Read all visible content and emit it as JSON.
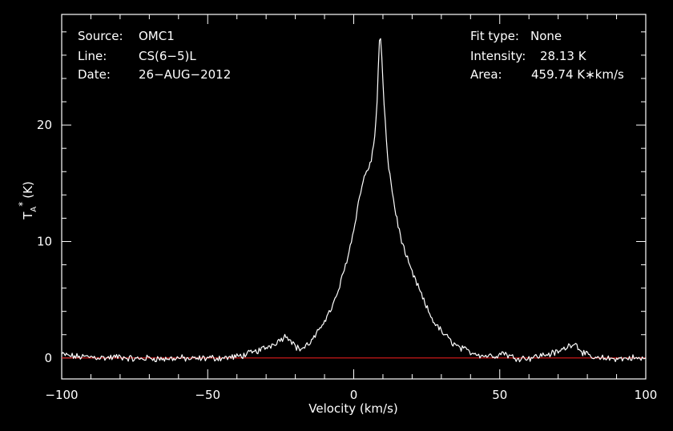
{
  "header": {
    "source_label": "Source:",
    "source_value": "OMC1",
    "line_label": "Line:",
    "line_value": "CS(6−5)L",
    "date_label": "Date:",
    "date_value": "26−AUG−2012",
    "fit_label": "Fit type:",
    "fit_value": "None",
    "intensity_label": "Intensity:",
    "intensity_value": "28.13 K",
    "area_label": "Area:",
    "area_value": "459.74 K∗km/s"
  },
  "chart_data": {
    "type": "line",
    "xlabel": "Velocity (km/s)",
    "ylabel_main": "T",
    "ylabel_sub": "A",
    "ylabel_sup": "*",
    "ylabel_unit": "(K)",
    "xlim": [
      -100,
      100
    ],
    "ylim": [
      -1.8,
      29.5
    ],
    "xticks": [
      -100,
      -50,
      0,
      50,
      100
    ],
    "xtick_labels": [
      "−100",
      "−50",
      "0",
      "50",
      "100"
    ],
    "yticks": [
      0,
      10,
      20
    ],
    "ytick_labels": [
      "0",
      "10",
      "20"
    ],
    "grid": false,
    "colors": {
      "background": "#000000",
      "spectrum": "#ffffff",
      "baseline": "#e01a1a",
      "axes": "#ffffff"
    },
    "baseline_value": 0,
    "series": [
      {
        "x": [
          -100,
          -95,
          -90,
          -85,
          -80,
          -75,
          -70,
          -65,
          -60,
          -55,
          -50,
          -45,
          -40,
          -37,
          -34,
          -31,
          -29,
          -27,
          -25,
          -24,
          -23,
          -22,
          -21,
          -20,
          -19,
          -18,
          -17,
          -16,
          -15,
          -14,
          -13,
          -12,
          -11,
          -10,
          -9,
          -8,
          -7,
          -6,
          -5,
          -4,
          -3,
          -2,
          -1,
          0,
          1,
          2,
          3,
          4,
          5,
          6,
          7,
          8,
          8.5,
          9,
          9.5,
          10,
          11,
          12,
          13,
          14,
          15,
          16,
          17,
          18,
          19,
          20,
          21,
          22,
          23,
          24,
          25,
          26,
          27,
          28,
          29,
          30,
          31,
          32,
          33,
          34,
          35,
          36,
          37,
          38,
          40,
          42,
          44,
          46,
          48,
          50,
          51,
          52,
          53,
          54,
          56,
          58,
          60,
          62,
          64,
          66,
          68,
          70,
          72,
          74,
          75,
          76,
          77,
          78,
          80,
          82,
          84,
          86,
          88,
          90,
          92,
          94,
          96,
          98,
          100
        ],
        "y": [
          0.3,
          0.1,
          0.1,
          0.0,
          0.1,
          -0.1,
          0.0,
          -0.1,
          0.0,
          -0.1,
          0.0,
          0.0,
          0.1,
          0.3,
          0.5,
          0.8,
          1.0,
          1.3,
          1.6,
          1.8,
          1.9,
          1.7,
          1.4,
          1.0,
          0.8,
          0.8,
          0.9,
          1.1,
          1.3,
          1.6,
          1.9,
          2.3,
          2.8,
          3.3,
          3.6,
          4.1,
          4.6,
          5.2,
          6.0,
          6.9,
          7.8,
          8.8,
          9.8,
          11.0,
          12.5,
          13.8,
          15.0,
          15.8,
          16.3,
          17.0,
          18.4,
          22.0,
          25.5,
          28.1,
          26.5,
          23.5,
          19.2,
          16.4,
          14.6,
          13.0,
          11.6,
          10.5,
          9.5,
          8.7,
          8.0,
          7.3,
          6.7,
          6.2,
          5.5,
          4.9,
          4.3,
          3.8,
          3.3,
          2.9,
          2.6,
          2.3,
          2.0,
          1.8,
          1.5,
          1.3,
          1.1,
          0.9,
          0.8,
          0.7,
          0.5,
          0.4,
          0.2,
          0.2,
          0.2,
          0.3,
          0.5,
          0.4,
          0.2,
          0.1,
          0.0,
          0.0,
          0.0,
          0.1,
          0.2,
          0.3,
          0.4,
          0.5,
          0.8,
          1.1,
          1.3,
          1.2,
          0.9,
          0.6,
          0.2,
          0.0,
          -0.1,
          0.0,
          -0.1,
          0.0,
          -0.1,
          0.0,
          0.0,
          -0.1,
          0.0
        ]
      }
    ]
  }
}
